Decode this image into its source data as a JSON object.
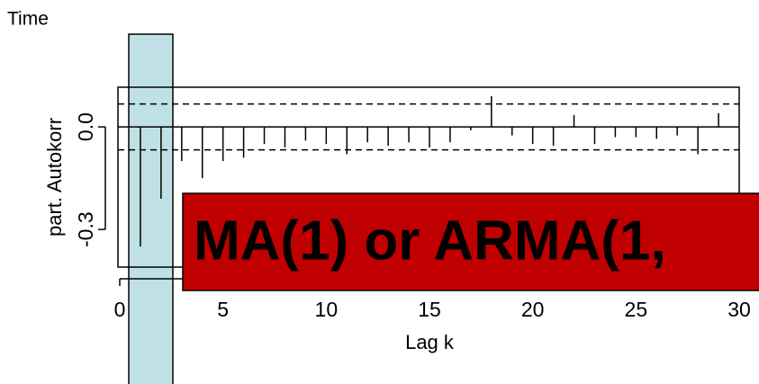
{
  "chart_data": {
    "type": "spike",
    "top_label": "Time",
    "ylabel": "part. Autokorr",
    "xlabel": "Lag k",
    "annotation": "MA(1) or ARMA(1,",
    "x": [
      1,
      2,
      3,
      4,
      5,
      6,
      7,
      8,
      9,
      10,
      11,
      12,
      13,
      14,
      15,
      16,
      17,
      18,
      19,
      20,
      21,
      22,
      23,
      24,
      25,
      26,
      27,
      28,
      29
    ],
    "values": [
      -0.35,
      -0.21,
      -0.1,
      -0.15,
      -0.1,
      -0.09,
      -0.05,
      -0.06,
      -0.04,
      -0.05,
      -0.08,
      -0.045,
      -0.055,
      -0.045,
      -0.06,
      -0.045,
      -0.01,
      0.09,
      -0.025,
      -0.05,
      -0.055,
      0.035,
      -0.05,
      -0.03,
      -0.03,
      -0.035,
      -0.025,
      -0.08,
      0.04
    ],
    "conf_bound": 0.067,
    "xlim": [
      0,
      30
    ],
    "xticks": [
      0,
      5,
      10,
      15,
      20,
      25,
      30
    ],
    "ylim": [
      -0.41,
      0.116
    ],
    "yticks": [
      {
        "value": 0,
        "label": "0.0"
      },
      {
        "value": -0.3,
        "label": "-0.3"
      }
    ],
    "color": "#000000"
  }
}
